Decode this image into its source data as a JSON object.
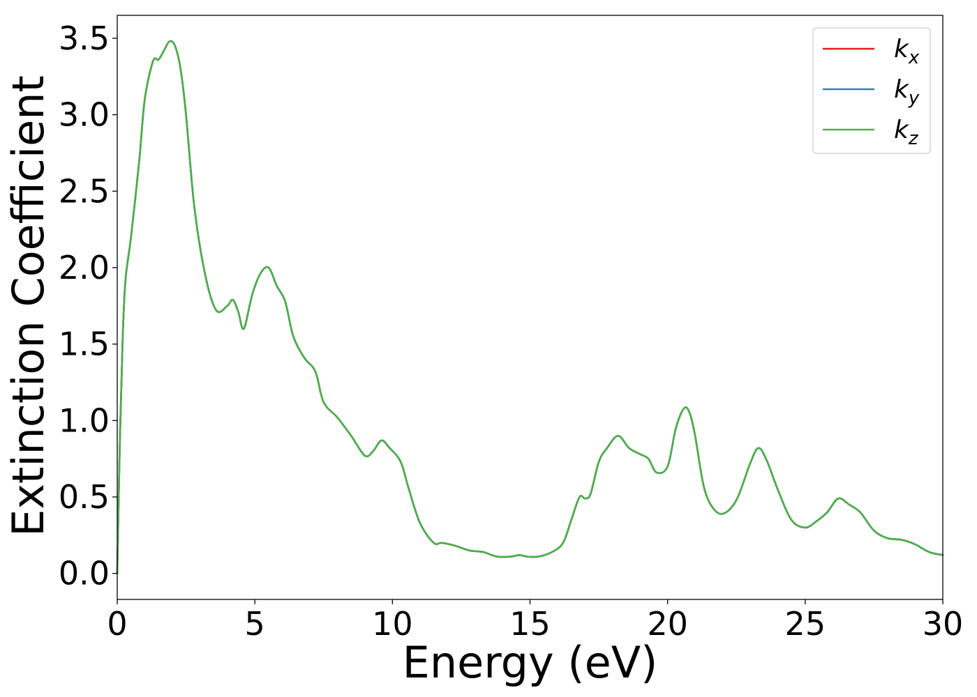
{
  "chart_data": {
    "type": "line",
    "title": "",
    "xlabel": "Energy (eV)",
    "ylabel": "Extinction Coefficient",
    "xlim": [
      0,
      30
    ],
    "ylim": [
      -0.17,
      3.65
    ],
    "xticks": [
      0,
      5,
      10,
      15,
      20,
      25,
      30
    ],
    "xtick_labels": [
      "0",
      "5",
      "10",
      "15",
      "20",
      "25",
      "30"
    ],
    "yticks": [
      0.0,
      0.5,
      1.0,
      1.5,
      2.0,
      2.5,
      3.0,
      3.5
    ],
    "ytick_labels": [
      "0.0",
      "0.5",
      "1.0",
      "1.5",
      "2.0",
      "2.5",
      "3.0",
      "3.5"
    ],
    "grid": false,
    "legend_position": "top-right",
    "series": [
      {
        "name": "k",
        "subscript": "x",
        "color": "#e41a1c",
        "x": [
          0,
          0.1,
          0.2,
          0.3,
          0.5,
          0.8,
          1.0,
          1.3,
          1.5,
          1.7,
          1.9,
          2.1,
          2.3,
          2.5,
          2.8,
          3.2,
          3.6,
          4.0,
          4.2,
          4.4,
          4.6,
          4.9,
          5.2,
          5.5,
          5.8,
          6.1,
          6.4,
          6.8,
          7.2,
          7.5,
          8.0,
          8.5,
          9.0,
          9.3,
          9.6,
          9.9,
          10.3,
          10.6,
          11.0,
          11.5,
          11.8,
          12.3,
          12.8,
          13.3,
          13.8,
          14.3,
          14.6,
          14.9,
          15.3,
          15.8,
          16.2,
          16.5,
          16.8,
          17.0,
          17.2,
          17.5,
          17.8,
          18.2,
          18.6,
          19.0,
          19.3,
          19.6,
          20.0,
          20.3,
          20.6,
          20.8,
          21.0,
          21.3,
          21.6,
          22.0,
          22.5,
          23.0,
          23.3,
          23.6,
          24.0,
          24.5,
          25.0,
          25.4,
          25.8,
          26.2,
          26.6,
          27.0,
          27.5,
          28.0,
          28.5,
          29.0,
          29.5,
          30.0
        ],
        "y": [
          0.0,
          0.9,
          1.55,
          1.92,
          2.2,
          2.7,
          3.1,
          3.35,
          3.36,
          3.42,
          3.48,
          3.45,
          3.3,
          3.0,
          2.4,
          1.95,
          1.72,
          1.75,
          1.79,
          1.71,
          1.6,
          1.82,
          1.96,
          2.0,
          1.88,
          1.78,
          1.55,
          1.41,
          1.32,
          1.12,
          1.02,
          0.9,
          0.77,
          0.8,
          0.87,
          0.82,
          0.73,
          0.55,
          0.33,
          0.2,
          0.2,
          0.18,
          0.15,
          0.14,
          0.11,
          0.11,
          0.12,
          0.11,
          0.11,
          0.14,
          0.2,
          0.35,
          0.5,
          0.49,
          0.52,
          0.73,
          0.82,
          0.9,
          0.82,
          0.78,
          0.75,
          0.66,
          0.7,
          0.95,
          1.08,
          1.05,
          0.9,
          0.58,
          0.44,
          0.39,
          0.48,
          0.72,
          0.82,
          0.74,
          0.55,
          0.35,
          0.3,
          0.34,
          0.4,
          0.49,
          0.45,
          0.4,
          0.28,
          0.23,
          0.22,
          0.19,
          0.14,
          0.12
        ]
      },
      {
        "name": "k",
        "subscript": "y",
        "color": "#377eb8",
        "x": [
          0,
          0.1,
          0.2,
          0.3,
          0.5,
          0.8,
          1.0,
          1.3,
          1.5,
          1.7,
          1.9,
          2.1,
          2.3,
          2.5,
          2.8,
          3.2,
          3.6,
          4.0,
          4.2,
          4.4,
          4.6,
          4.9,
          5.2,
          5.5,
          5.8,
          6.1,
          6.4,
          6.8,
          7.2,
          7.5,
          8.0,
          8.5,
          9.0,
          9.3,
          9.6,
          9.9,
          10.3,
          10.6,
          11.0,
          11.5,
          11.8,
          12.3,
          12.8,
          13.3,
          13.8,
          14.3,
          14.6,
          14.9,
          15.3,
          15.8,
          16.2,
          16.5,
          16.8,
          17.0,
          17.2,
          17.5,
          17.8,
          18.2,
          18.6,
          19.0,
          19.3,
          19.6,
          20.0,
          20.3,
          20.6,
          20.8,
          21.0,
          21.3,
          21.6,
          22.0,
          22.5,
          23.0,
          23.3,
          23.6,
          24.0,
          24.5,
          25.0,
          25.4,
          25.8,
          26.2,
          26.6,
          27.0,
          27.5,
          28.0,
          28.5,
          29.0,
          29.5,
          30.0
        ],
        "y": [
          0.0,
          0.9,
          1.55,
          1.92,
          2.2,
          2.7,
          3.1,
          3.35,
          3.36,
          3.42,
          3.48,
          3.45,
          3.3,
          3.0,
          2.4,
          1.95,
          1.72,
          1.75,
          1.79,
          1.71,
          1.6,
          1.82,
          1.96,
          2.0,
          1.88,
          1.78,
          1.55,
          1.41,
          1.32,
          1.12,
          1.02,
          0.9,
          0.77,
          0.8,
          0.87,
          0.82,
          0.73,
          0.55,
          0.33,
          0.2,
          0.2,
          0.18,
          0.15,
          0.14,
          0.11,
          0.11,
          0.12,
          0.11,
          0.11,
          0.14,
          0.2,
          0.35,
          0.5,
          0.49,
          0.52,
          0.73,
          0.82,
          0.9,
          0.82,
          0.78,
          0.75,
          0.66,
          0.7,
          0.95,
          1.08,
          1.05,
          0.9,
          0.58,
          0.44,
          0.39,
          0.48,
          0.72,
          0.82,
          0.74,
          0.55,
          0.35,
          0.3,
          0.34,
          0.4,
          0.49,
          0.45,
          0.4,
          0.28,
          0.23,
          0.22,
          0.19,
          0.14,
          0.12
        ]
      },
      {
        "name": "k",
        "subscript": "z",
        "color": "#4daf4a",
        "x": [
          0,
          0.1,
          0.2,
          0.3,
          0.5,
          0.8,
          1.0,
          1.3,
          1.5,
          1.7,
          1.9,
          2.1,
          2.3,
          2.5,
          2.8,
          3.2,
          3.6,
          4.0,
          4.2,
          4.4,
          4.6,
          4.9,
          5.2,
          5.5,
          5.8,
          6.1,
          6.4,
          6.8,
          7.2,
          7.5,
          8.0,
          8.5,
          9.0,
          9.3,
          9.6,
          9.9,
          10.3,
          10.6,
          11.0,
          11.5,
          11.8,
          12.3,
          12.8,
          13.3,
          13.8,
          14.3,
          14.6,
          14.9,
          15.3,
          15.8,
          16.2,
          16.5,
          16.8,
          17.0,
          17.2,
          17.5,
          17.8,
          18.2,
          18.6,
          19.0,
          19.3,
          19.6,
          20.0,
          20.3,
          20.6,
          20.8,
          21.0,
          21.3,
          21.6,
          22.0,
          22.5,
          23.0,
          23.3,
          23.6,
          24.0,
          24.5,
          25.0,
          25.4,
          25.8,
          26.2,
          26.6,
          27.0,
          27.5,
          28.0,
          28.5,
          29.0,
          29.5,
          30.0
        ],
        "y": [
          0.0,
          0.9,
          1.55,
          1.92,
          2.2,
          2.7,
          3.1,
          3.35,
          3.36,
          3.42,
          3.48,
          3.45,
          3.3,
          3.0,
          2.4,
          1.95,
          1.72,
          1.75,
          1.79,
          1.71,
          1.6,
          1.82,
          1.96,
          2.0,
          1.88,
          1.78,
          1.55,
          1.41,
          1.32,
          1.12,
          1.02,
          0.9,
          0.77,
          0.8,
          0.87,
          0.82,
          0.73,
          0.55,
          0.33,
          0.2,
          0.2,
          0.18,
          0.15,
          0.14,
          0.11,
          0.11,
          0.12,
          0.11,
          0.11,
          0.14,
          0.2,
          0.35,
          0.5,
          0.49,
          0.52,
          0.73,
          0.82,
          0.9,
          0.82,
          0.78,
          0.75,
          0.66,
          0.7,
          0.95,
          1.08,
          1.05,
          0.9,
          0.58,
          0.44,
          0.39,
          0.48,
          0.72,
          0.82,
          0.74,
          0.55,
          0.35,
          0.3,
          0.34,
          0.4,
          0.49,
          0.45,
          0.4,
          0.28,
          0.23,
          0.22,
          0.19,
          0.14,
          0.12
        ]
      }
    ]
  }
}
